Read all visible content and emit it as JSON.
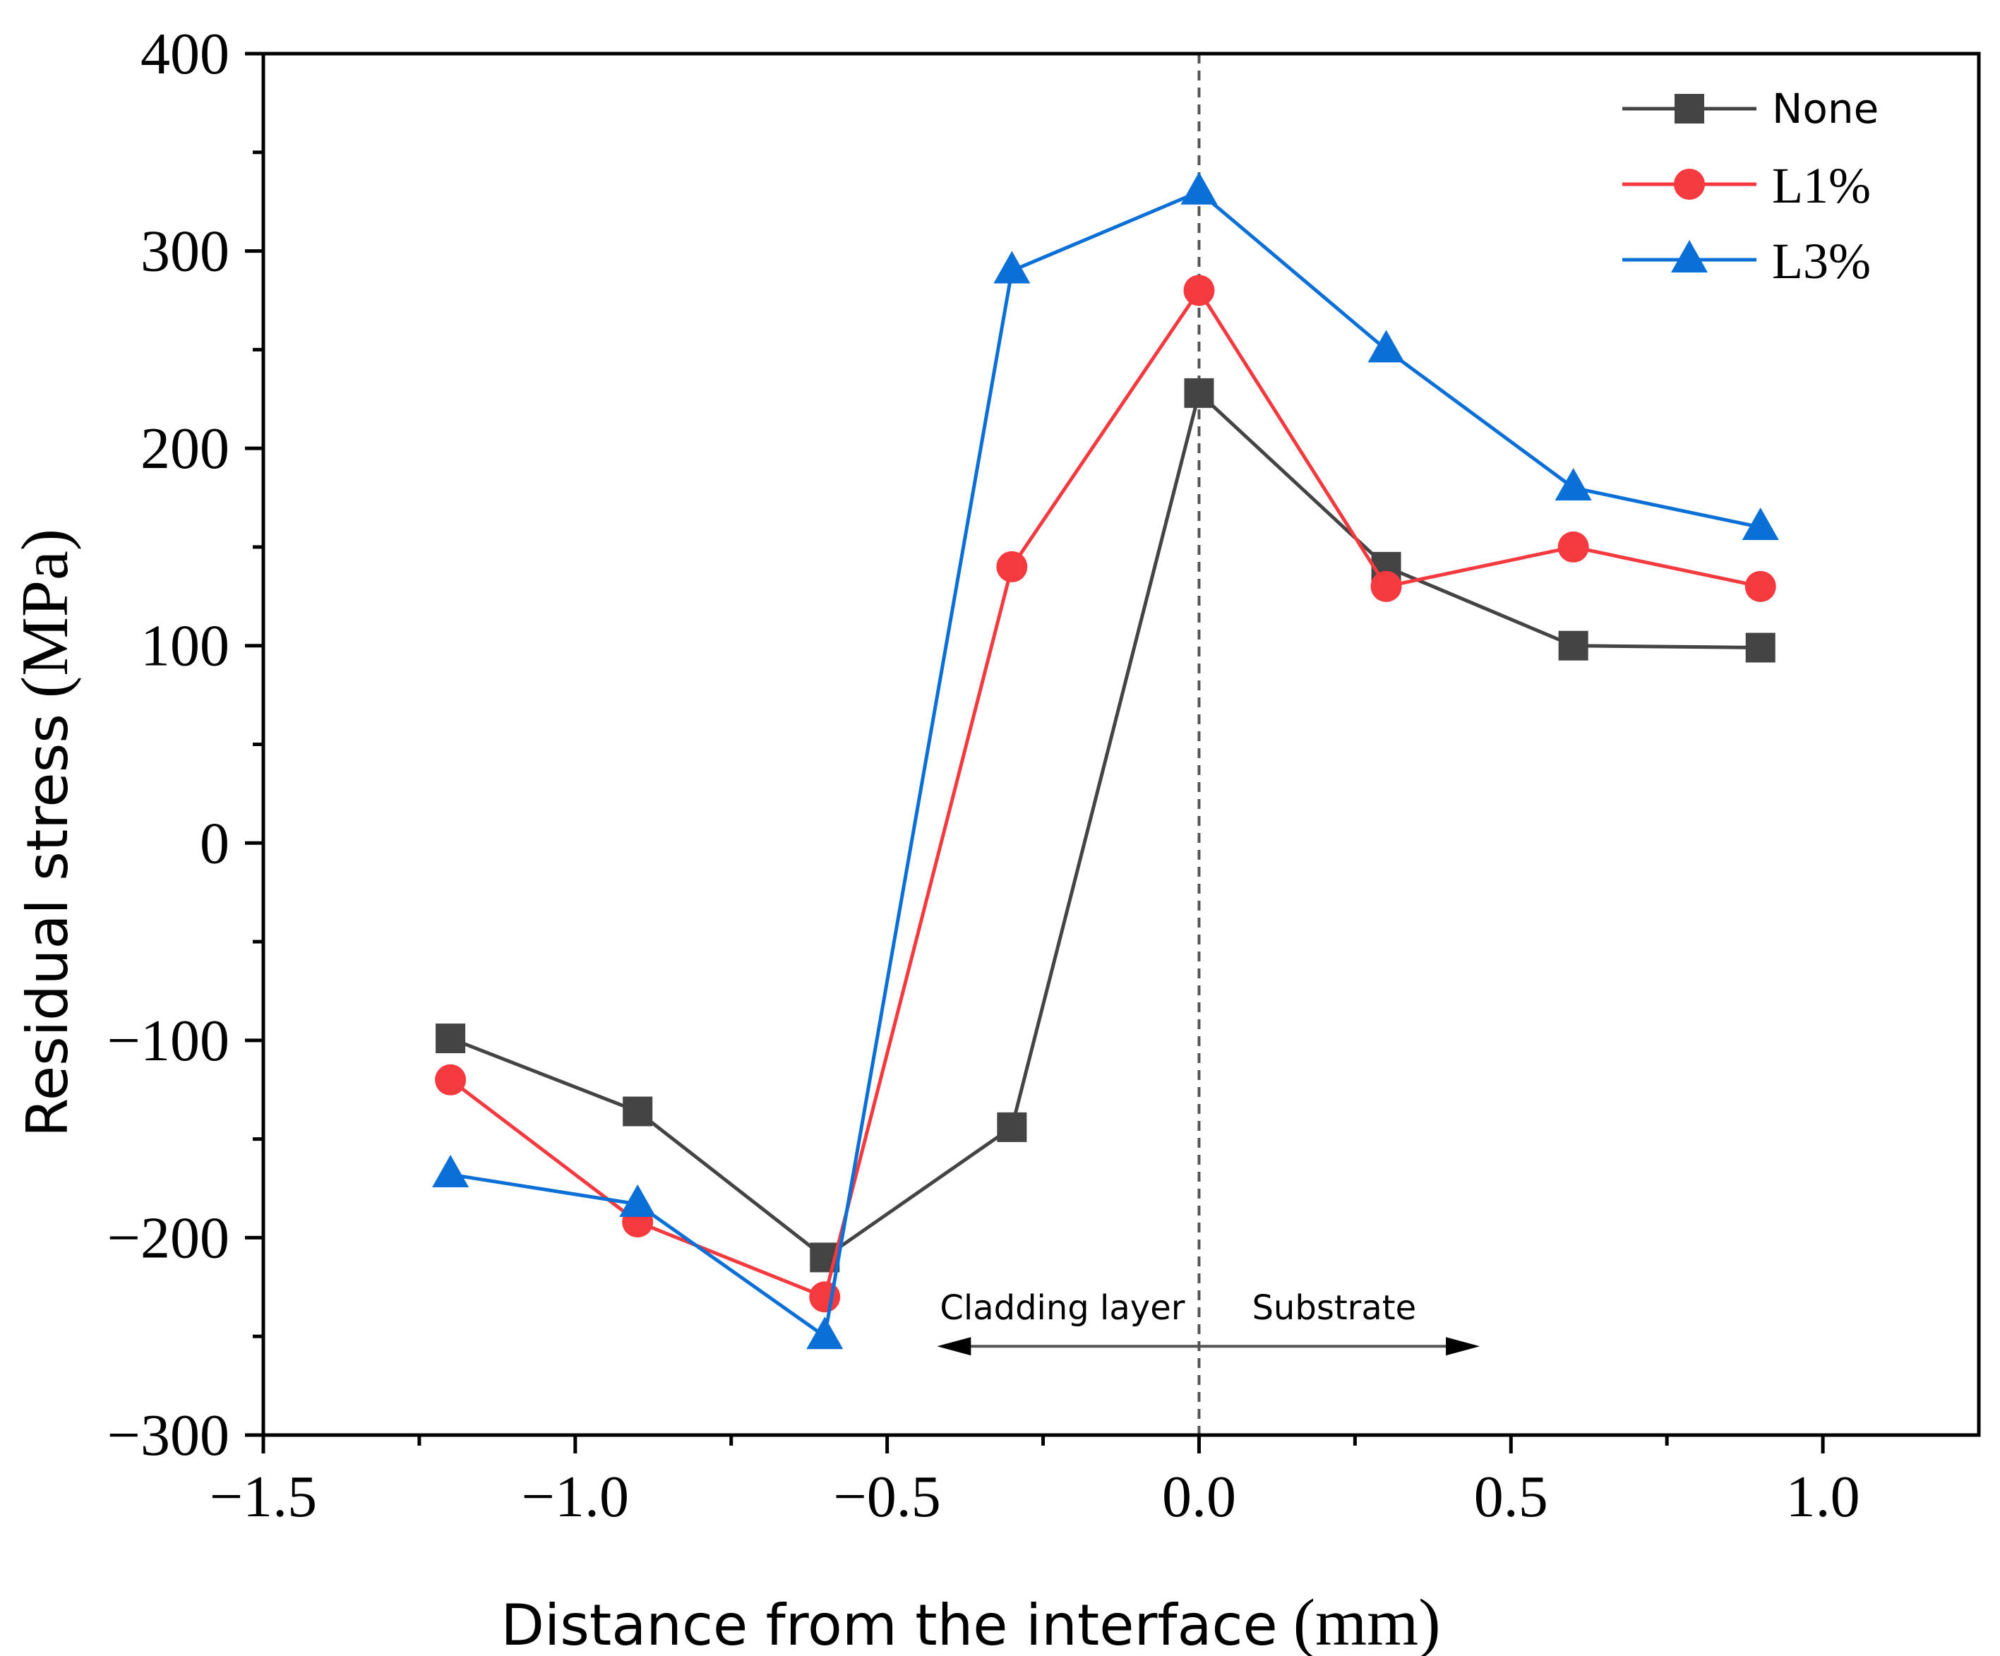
{
  "chart_data": {
    "type": "line",
    "title": "",
    "xlabel_text": "Distance from the interface",
    "xlabel_unit": "(mm)",
    "ylabel_text": "Residual stress",
    "ylabel_unit": "(MPa)",
    "xlim": [
      -1.5,
      1.25
    ],
    "ylim": [
      -300,
      400
    ],
    "xticks": [
      -1.5,
      -1.0,
      -0.5,
      0.0,
      0.5,
      1.0
    ],
    "xtick_labels": [
      "−1.5",
      "−1.0",
      "−0.5",
      "0.0",
      "0.5",
      "1.0"
    ],
    "yticks": [
      -300,
      -200,
      -100,
      0,
      100,
      200,
      300,
      400
    ],
    "ytick_labels": [
      "−300",
      "−200",
      "−100",
      "0",
      "100",
      "200",
      "300",
      "400"
    ],
    "grid": false,
    "legend_position": "top-right",
    "x": [
      -1.2,
      -0.9,
      -0.6,
      -0.3,
      0.0,
      0.3,
      0.6,
      0.9
    ],
    "series": [
      {
        "name": "None",
        "color": "#444444",
        "marker": "square",
        "values": [
          -99,
          -136,
          -210,
          -144,
          228,
          140,
          100,
          99
        ]
      },
      {
        "name": "L1%",
        "color": "#f53a3f",
        "marker": "circle",
        "values": [
          -120,
          -192,
          -230,
          140,
          280,
          130,
          150,
          130
        ]
      },
      {
        "name": "L3%",
        "color": "#0a6fd6",
        "marker": "triangle",
        "values": [
          -168,
          -183,
          -250,
          290,
          330,
          250,
          180,
          160
        ]
      }
    ],
    "interface_line_x": 0.0,
    "annotations": {
      "left_label": "Cladding layer",
      "right_label": "Substrate",
      "arrow_from": -0.42,
      "arrow_to": 0.45,
      "arrow_y": -255
    }
  }
}
